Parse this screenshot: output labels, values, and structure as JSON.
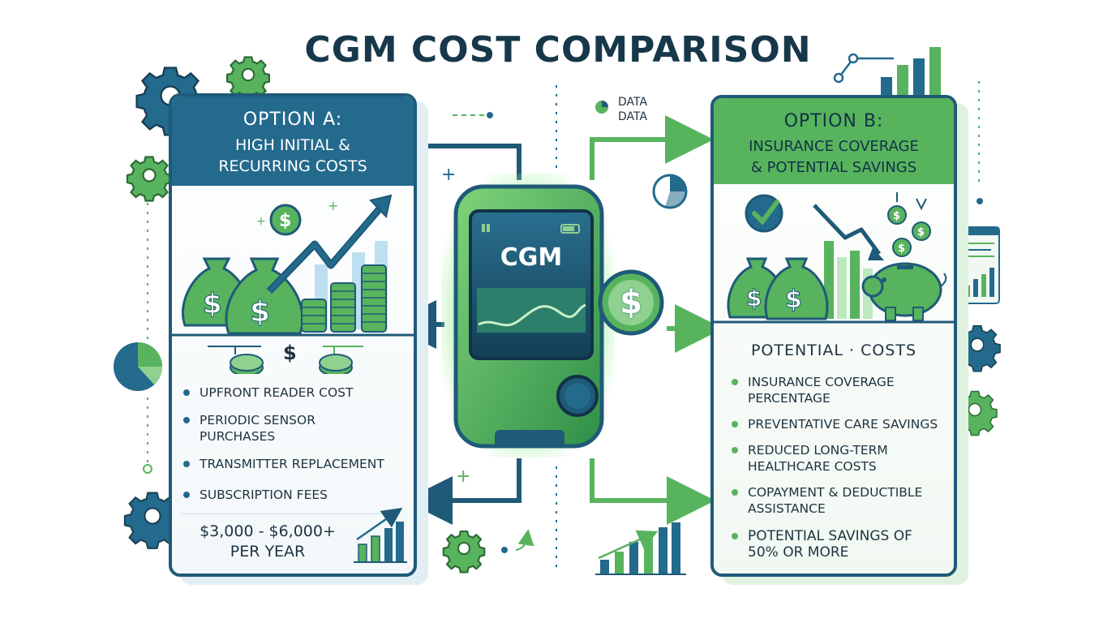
{
  "title": "CGM COST COMPARISON",
  "data_label_1": "DATA",
  "data_label_2": "DATA",
  "device": {
    "label": "CGM",
    "badge_symbol": "$"
  },
  "option_a": {
    "title": "OPTION A:",
    "subtitle_line1": "HIGH INITIAL &",
    "subtitle_line2": "RECURRING COSTS",
    "dollar_sign": "$",
    "items": [
      "UPFRONT READER COST",
      "PERIODIC SENSOR PURCHASES",
      "TRANSMITTER REPLACEMENT",
      "SUBSCRIPTION FEES"
    ],
    "cost_line1": "$3,000 - $6,000+",
    "cost_line2": "PER YEAR"
  },
  "option_b": {
    "title": "OPTION B:",
    "subtitle_line1": "INSURANCE COVERAGE",
    "subtitle_line2": "& POTENTIAL SAVINGS",
    "section_heading": "POTENTIAL · COSTS",
    "items": [
      "INSURANCE COVERAGE PERCENTAGE",
      "PREVENTATIVE CARE SAVINGS",
      "REDUCED LONG-TERM HEALTHCARE COSTS",
      "COPAYMENT & DEDUCTIBLE ASSISTANCE",
      "POTENTIAL SAVINGS OF 50% OR MORE"
    ]
  },
  "colors": {
    "navy": "#1f5a78",
    "blue": "#236a8d",
    "green": "#57b45d",
    "light_green": "#8fd18f"
  },
  "icons": [
    "gear-icon",
    "pie-chart-icon",
    "money-bag-icon",
    "coin-stack-icon",
    "checkmark-icon",
    "piggy-bank-icon",
    "bar-chart-icon",
    "arrow-icon",
    "dollar-coin-icon"
  ]
}
